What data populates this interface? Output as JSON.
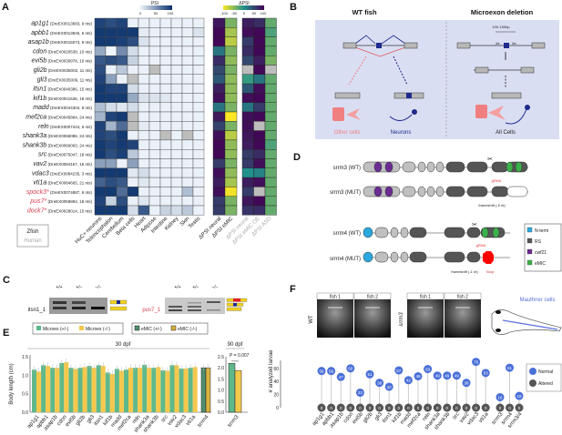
{
  "panels": {
    "a": "A",
    "b": "B",
    "c": "C",
    "d": "D",
    "e": "E",
    "f": "F"
  },
  "panel_a": {
    "psi_title": "PSI",
    "psi_ticks": [
      "0",
      "50",
      "100"
    ],
    "dpsi_title": "ΔPSI",
    "dpsi_ticks": [
      "-100",
      "-50",
      "0",
      "50",
      "100"
    ],
    "species_legend": {
      "zfish": "Zfish",
      "human": "Human"
    },
    "psi_columns": [
      "HuC+ neurons",
      "Telencephalon",
      "Cerebellum",
      "Beta cells",
      "Heart",
      "Adipose",
      "Intestine",
      "Kidney",
      "Skin",
      "Testis"
    ],
    "zfish_columns": [
      "ΔPSI neural",
      "ΔPSI eMIC"
    ],
    "human_columns": [
      "ΔPSI neural",
      "ΔPSI eMIC OE",
      "ΔPSI ASD"
    ],
    "colors": {
      "psi_low": "#f7fbff",
      "psi_high": "#08306b",
      "na": "#bdbdbd",
      "dpsi_neg": "#fde725",
      "dpsi_mid": "#21918c",
      "dpsi_pos": "#440154",
      "highlight": "#d94050"
    },
    "rows": [
      {
        "gene": "ap1g1",
        "info": "(DreEX0013683, 9 nts)",
        "red": false,
        "psi": [
          90,
          85,
          90,
          5,
          5,
          5,
          5,
          5,
          5,
          5
        ],
        "zf": [
          85,
          -40
        ],
        "hs": [
          80,
          70,
          -30
        ]
      },
      {
        "gene": "apbb1",
        "info": "(DreEX0013846, 6 nts)",
        "red": false,
        "psi": [
          95,
          95,
          95,
          95,
          8,
          5,
          5,
          5,
          5,
          12
        ],
        "zf": [
          95,
          -60
        ],
        "hs": [
          90,
          95,
          -20
        ]
      },
      {
        "gene": "asap1b",
        "info": "(DreEX0015073, 9 nts)",
        "red": false,
        "psi": [
          95,
          95,
          92,
          85,
          12,
          5,
          5,
          5,
          5,
          5
        ],
        "zf": [
          95,
          -70
        ],
        "hs": [
          60,
          95,
          -30
        ]
      },
      {
        "gene": "cdon",
        "info": "(DreEX0020538, 10 nts)",
        "red": false,
        "psi": [
          40,
          3,
          55,
          15,
          5,
          5,
          5,
          5,
          5,
          5
        ],
        "zf": [
          20,
          -40
        ],
        "hs": [
          70,
          95,
          -30
        ]
      },
      {
        "gene": "evi5b",
        "info": "(DreEX0030978, 10 nts)",
        "red": false,
        "psi": [
          80,
          85,
          80,
          20,
          5,
          5,
          5,
          5,
          5,
          5
        ],
        "zf": [
          70,
          -50
        ],
        "hs": [
          50,
          80,
          -40
        ]
      },
      {
        "gene": "gli2b",
        "info": "(DreEX0035002, 11 nts)",
        "red": false,
        "psi": [
          85,
          5,
          25,
          5,
          5,
          null,
          5,
          5,
          5,
          5
        ],
        "zf": [
          50,
          -40
        ],
        "hs": [
          null,
          95,
          null
        ]
      },
      {
        "gene": "gli3",
        "info": "(DreEX0035009, 11 nts)",
        "red": false,
        "psi": [
          90,
          45,
          5,
          null,
          5,
          5,
          5,
          5,
          5,
          5
        ],
        "zf": [
          40,
          -50
        ],
        "hs": [
          -10,
          20,
          -30
        ]
      },
      {
        "gene": "itsn1",
        "info": "(DreEX0040386, 15 nts)",
        "red": false,
        "psi": [
          95,
          90,
          90,
          15,
          5,
          5,
          5,
          5,
          5,
          5
        ],
        "zf": [
          80,
          -50
        ],
        "hs": [
          40,
          90,
          -30
        ]
      },
      {
        "gene": "kif1b",
        "info": "(DreEX0041536, 18 nts)",
        "red": false,
        "psi": [
          95,
          95,
          95,
          40,
          12,
          12,
          10,
          5,
          5,
          5
        ],
        "zf": [
          90,
          -50
        ],
        "hs": [
          90,
          95,
          -30
        ]
      },
      {
        "gene": "madd",
        "info": "(DreEX0044304, 9 nts)",
        "red": false,
        "psi": [
          30,
          15,
          10,
          15,
          5,
          5,
          5,
          5,
          5,
          5
        ],
        "zf": [
          20,
          -40
        ],
        "hs": [
          20,
          60,
          -30
        ]
      },
      {
        "gene": "mef2ca",
        "info": "(DreEX0045884, 24 nts)",
        "red": false,
        "psi": [
          35,
          90,
          95,
          null,
          5,
          5,
          5,
          5,
          5,
          5
        ],
        "zf": [
          85,
          -100
        ],
        "hs": [
          90,
          95,
          -30
        ]
      },
      {
        "gene": "reln",
        "info": "(DreEX0007444, 6 nts)",
        "red": false,
        "psi": [
          90,
          35,
          70,
          null,
          8,
          5,
          5,
          5,
          5,
          5
        ],
        "zf": [
          55,
          -40
        ],
        "hs": [
          90,
          null,
          -30
        ]
      },
      {
        "gene": "shank3a",
        "info": "(DreEX0066086, 24 nts)",
        "red": false,
        "psi": [
          90,
          85,
          95,
          5,
          5,
          5,
          null,
          5,
          null,
          5
        ],
        "zf": [
          90,
          -70
        ],
        "hs": [
          85,
          95,
          -30
        ]
      },
      {
        "gene": "shank3b",
        "info": "(DreEX0066093, 24 nts)",
        "red": false,
        "psi": [
          95,
          90,
          95,
          90,
          5,
          5,
          5,
          5,
          5,
          5
        ],
        "zf": [
          95,
          -50
        ],
        "hs": [
          80,
          95,
          -20
        ]
      },
      {
        "gene": "src",
        "info": "(DreEX0075047, 18 nts)",
        "red": false,
        "psi": [
          95,
          85,
          92,
          25,
          5,
          5,
          5,
          5,
          5,
          5
        ],
        "zf": [
          95,
          -50
        ],
        "hs": [
          60,
          70,
          -30
        ]
      },
      {
        "gene": "vav2",
        "info": "(DreEX0084167, 15 nts)",
        "red": false,
        "psi": [
          45,
          45,
          5,
          45,
          5,
          5,
          5,
          5,
          5,
          5
        ],
        "zf": [
          60,
          -40
        ],
        "hs": [
          60,
          90,
          -30
        ]
      },
      {
        "gene": "vdac3",
        "info": "(DreEX0084235, 3 nts)",
        "red": false,
        "psi": [
          95,
          95,
          95,
          10,
          15,
          5,
          5,
          5,
          5,
          5
        ],
        "zf": [
          90,
          -50
        ],
        "hs": [
          0,
          10,
          -30
        ]
      },
      {
        "gene": "vti1a",
        "info": "(DreEX0084665, 21 nts)",
        "red": false,
        "psi": [
          75,
          85,
          80,
          5,
          10,
          5,
          5,
          5,
          5,
          5
        ],
        "zf": [
          80,
          -60
        ],
        "hs": [
          80,
          90,
          -30
        ]
      },
      {
        "gene": "spock3*",
        "info": "(DreEX0074887, 6 nts)",
        "red": true,
        "psi": [
          95,
          95,
          70,
          95,
          5,
          5,
          5,
          5,
          30,
          5
        ],
        "zf": [
          90,
          -95
        ],
        "hs": [
          60,
          null,
          -30
        ]
      },
      {
        "gene": "pus7*",
        "info": "(DreEX0059894, 18 nts)",
        "red": true,
        "psi": [
          90,
          20,
          85,
          5,
          10,
          5,
          5,
          5,
          5,
          5
        ],
        "zf": [
          60,
          -40
        ],
        "hs": [
          85,
          95,
          -30
        ]
      },
      {
        "gene": "dock7*",
        "info": "(DreEX0028014, 15 nts)",
        "red": true,
        "psi": [
          95,
          95,
          95,
          15,
          80,
          5,
          20,
          15,
          25,
          5
        ],
        "zf": [
          60,
          -40
        ],
        "hs": [
          65,
          70,
          -30
        ]
      }
    ]
  },
  "panel_b": {
    "wt_title": "WT fish",
    "del_title": "Microexon deletion",
    "other_cells": "Other cells",
    "neurons": "Neurons",
    "all_cells": "All Cells",
    "size": "100-150bp",
    "colors": {
      "bg": "#d9def3",
      "exon": "#b8b8b8",
      "microexon": "#1f2a8a",
      "other": "#f08080"
    }
  },
  "panel_c": {
    "genotypes": [
      "+/+",
      "+/−",
      "−/−"
    ],
    "gel1": "itsn1_1",
    "gel2": "pus7_1"
  },
  "panel_d": {
    "rows": [
      "srrm3 (WT)",
      "srrm3 (MUT)",
      "srrm4 (WT)",
      "srrm4 (MUT)"
    ],
    "grna": "gRNA",
    "fs5": "frameshift (-5 nt)",
    "fs1": "frameshift (-1 nt)",
    "stop": "Stop",
    "legend": [
      {
        "label": "N-term",
        "color": "#2aa9df"
      },
      {
        "label": "RS",
        "color": "#555555"
      },
      {
        "label": "cwf21",
        "color": "#6a2c91"
      },
      {
        "label": "eMIC",
        "color": "#3cb04a"
      }
    ]
  },
  "chart_data": [
    {
      "type": "bar",
      "title": "",
      "xlabel": "",
      "ylabel": "Body length (cm)",
      "ylim": [
        0,
        1.5
      ],
      "yticks": [
        "0.0",
        "0.5",
        "1.0",
        "1.5"
      ],
      "group_label": "30 dpf",
      "legend": [
        "Microex (+/-)",
        "Microex (-/-)",
        "eMIC (+/-)",
        "eMIC (-/-)"
      ],
      "categories": [
        "ap1g1",
        "apbb1",
        "asap1b",
        "cdon",
        "evi5b",
        "gli2b",
        "gli3",
        "itsn1",
        "kif1b",
        "madd",
        "mef2ca",
        "reln",
        "shank3a",
        "shank3b",
        "src",
        "vav2",
        "vdac3",
        "vti1a",
        "srrm4"
      ],
      "series": [
        {
          "name": "het",
          "values": [
            1.15,
            1.27,
            1.2,
            1.33,
            1.2,
            1.2,
            1.25,
            1.27,
            1.07,
            1.17,
            1.15,
            1.2,
            1.28,
            1.2,
            1.13,
            1.27,
            1.18,
            1.2,
            1.2
          ]
        },
        {
          "name": "hom",
          "values": [
            1.1,
            1.25,
            1.2,
            1.35,
            1.17,
            1.22,
            1.2,
            1.25,
            1.03,
            1.12,
            1.2,
            1.2,
            1.2,
            1.22,
            1.12,
            1.27,
            1.18,
            1.22,
            1.2
          ]
        }
      ],
      "colors": {
        "het": "#5fb88a",
        "hom": "#f5c84c",
        "emic_het": "#4e8f6e",
        "emic_hom": "#d9b040"
      }
    },
    {
      "type": "bar",
      "ylabel": "",
      "ylim": [
        0,
        2.5
      ],
      "yticks": [
        "0.0",
        "0.5",
        "1.0",
        "1.5",
        "2.0",
        "2.5"
      ],
      "group_label": "90 dpf",
      "categories": [
        "srrm3"
      ],
      "series": [
        {
          "name": "het",
          "values": [
            2.2
          ]
        },
        {
          "name": "hom",
          "values": [
            1.88
          ]
        }
      ],
      "annotation": "P = 0.007"
    },
    {
      "type": "scatter",
      "subtype": "lollipop",
      "ylabel": "# analyzed larvae",
      "ylim": [
        0,
        75
      ],
      "yticks": [
        "0",
        "20",
        "40",
        "60"
      ],
      "categories": [
        "ap1g1",
        "apbb1",
        "asap1b",
        "cdon",
        "evi5b",
        "gli2b",
        "gli3",
        "itsn1",
        "kif1b",
        "madd",
        "mef2ca",
        "reln",
        "shank3a",
        "shank3b",
        "src",
        "vav2",
        "vdac3",
        "vti1a",
        "srrm3",
        "srrm4",
        "srrm3/4"
      ],
      "series": [
        {
          "name": "Normal",
          "color": "#4a6fd8",
          "values": [
            56,
            56,
            47,
            60,
            23,
            51,
            38,
            32,
            57,
            42,
            48,
            59,
            49,
            49,
            49,
            38,
            70,
            53,
            16,
            61,
            18
          ]
        },
        {
          "name": "Altered",
          "color": "#555555",
          "values": [
            0,
            0,
            0,
            0,
            0,
            0,
            0,
            0,
            0,
            0,
            0,
            0,
            0,
            0,
            0,
            0,
            0,
            0,
            0,
            0,
            0
          ]
        }
      ],
      "legend_position": "right"
    }
  ],
  "panel_f": {
    "wt": "WT",
    "mut": "srrm3",
    "fish1": "fish 1",
    "fish2": "fish 2",
    "mauthner": "Mauthner cells"
  }
}
